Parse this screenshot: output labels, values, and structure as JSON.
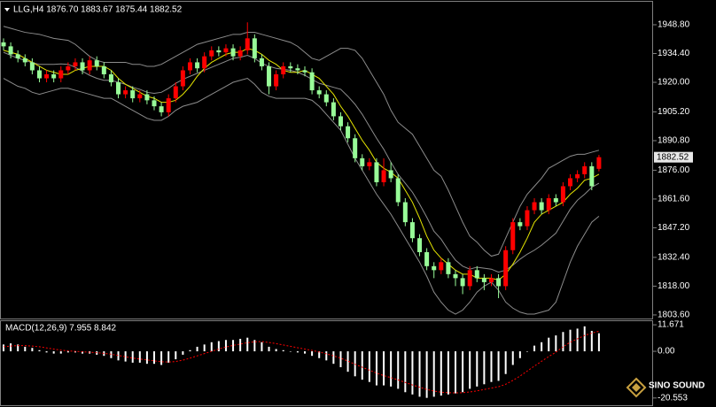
{
  "chart_data": [
    {
      "type": "candlestick",
      "title": "LLG,H4  1876.70 1883.67 1875.44 1882.52",
      "open": [
        1940,
        1938,
        1934,
        1932,
        1930,
        1926,
        1922,
        1924,
        1922,
        1926,
        1928,
        1930,
        1926,
        1931,
        1928,
        1924,
        1920,
        1914,
        1916,
        1912,
        1914,
        1911,
        1908,
        1905,
        1912,
        1918,
        1926,
        1930,
        1927,
        1933,
        1936,
        1935,
        1937,
        1933,
        1936,
        1942,
        1932,
        1928,
        1918,
        1924,
        1928,
        1927,
        1926,
        1925,
        1916,
        1914,
        1910,
        1903,
        1898,
        1892,
        1882,
        1878,
        1880,
        1870,
        1876,
        1872,
        1860,
        1850,
        1842,
        1835,
        1828,
        1826,
        1830,
        1824,
        1822,
        1818,
        1826,
        1822,
        1820,
        1822,
        1818,
        1836,
        1850,
        1848,
        1856,
        1860,
        1856,
        1862,
        1860,
        1868,
        1872,
        1874,
        1878,
        1876.7
      ],
      "high": [
        1942,
        1940,
        1936,
        1934,
        1932,
        1928,
        1926,
        1926,
        1928,
        1930,
        1932,
        1932,
        1933,
        1933,
        1930,
        1926,
        1922,
        1918,
        1918,
        1916,
        1916,
        1913,
        1910,
        1914,
        1920,
        1928,
        1932,
        1932,
        1935,
        1938,
        1938,
        1939,
        1939,
        1938,
        1950,
        1944,
        1934,
        1930,
        1926,
        1930,
        1930,
        1929,
        1928,
        1927,
        1918,
        1916,
        1912,
        1905,
        1900,
        1894,
        1884,
        1882,
        1882,
        1882,
        1880,
        1874,
        1862,
        1852,
        1844,
        1837,
        1830,
        1832,
        1832,
        1826,
        1824,
        1828,
        1828,
        1824,
        1824,
        1824,
        1838,
        1852,
        1852,
        1858,
        1862,
        1862,
        1864,
        1864,
        1870,
        1874,
        1876,
        1880,
        1880,
        1883.67
      ],
      "low": [
        1936,
        1932,
        1930,
        1928,
        1924,
        1920,
        1920,
        1920,
        1920,
        1924,
        1926,
        1924,
        1924,
        1926,
        1922,
        1918,
        1912,
        1912,
        1910,
        1910,
        1909,
        1906,
        1903,
        1903,
        1910,
        1916,
        1924,
        1925,
        1925,
        1931,
        1933,
        1933,
        1931,
        1931,
        1934,
        1930,
        1926,
        1914,
        1916,
        1922,
        1925,
        1924,
        1923,
        1914,
        1912,
        1908,
        1901,
        1896,
        1890,
        1880,
        1876,
        1876,
        1868,
        1868,
        1870,
        1858,
        1848,
        1840,
        1833,
        1826,
        1822,
        1824,
        1822,
        1818,
        1814,
        1816,
        1820,
        1816,
        1818,
        1812,
        1816,
        1834,
        1846,
        1846,
        1854,
        1854,
        1854,
        1858,
        1858,
        1866,
        1870,
        1872,
        1866,
        1875.44
      ],
      "close": [
        1938,
        1934,
        1932,
        1930,
        1926,
        1922,
        1924,
        1922,
        1926,
        1928,
        1930,
        1926,
        1931,
        1928,
        1924,
        1920,
        1914,
        1916,
        1912,
        1914,
        1911,
        1908,
        1905,
        1912,
        1918,
        1926,
        1930,
        1927,
        1933,
        1936,
        1935,
        1937,
        1933,
        1936,
        1942,
        1932,
        1928,
        1918,
        1924,
        1928,
        1927,
        1926,
        1925,
        1916,
        1914,
        1910,
        1903,
        1898,
        1892,
        1882,
        1878,
        1880,
        1870,
        1876,
        1872,
        1860,
        1850,
        1842,
        1835,
        1828,
        1826,
        1830,
        1824,
        1822,
        1818,
        1826,
        1822,
        1820,
        1822,
        1818,
        1836,
        1850,
        1848,
        1856,
        1860,
        1856,
        1862,
        1860,
        1868,
        1872,
        1874,
        1878,
        1868,
        1882.52
      ],
      "up_color": "#ff0000",
      "down_color": "#98fb98",
      "overlays": [
        {
          "color": "#8c8c8c",
          "values": [
            1948,
            1947,
            1946,
            1945,
            1944.5,
            1944,
            1943,
            1942,
            1941.5,
            1941,
            1939,
            1936,
            1933,
            1931,
            1930,
            1930,
            1930,
            1930,
            1929,
            1929,
            1928,
            1928,
            1929,
            1931,
            1933,
            1935,
            1937,
            1939,
            1940,
            1941,
            1942,
            1943,
            1944,
            1944,
            1945,
            1945,
            1944,
            1943,
            1942,
            1941,
            1940,
            1938,
            1935,
            1932,
            1931,
            1933,
            1935,
            1937,
            1937,
            1936,
            1932,
            1926,
            1920,
            1914,
            1906,
            1900,
            1897,
            1894,
            1888,
            1882,
            1876,
            1873,
            1866,
            1858,
            1850,
            1843,
            1840,
            1836,
            1833,
            1834,
            1842,
            1850,
            1858,
            1864,
            1868,
            1872,
            1877,
            1879,
            1881,
            1883,
            1884,
            1884,
            1885,
            1886
          ]
        },
        {
          "color": "#8c8c8c",
          "values": [
            1935,
            1933.5,
            1932,
            1931,
            1929.8,
            1929,
            1929,
            1929,
            1929.2,
            1929,
            1927.5,
            1925.5,
            1923.5,
            1922,
            1921,
            1921,
            1920,
            1919,
            1917.5,
            1916.5,
            1915,
            1914.5,
            1915,
            1917,
            1919.5,
            1921.5,
            1923,
            1924.5,
            1926,
            1927.5,
            1929,
            1930.5,
            1932,
            1932.5,
            1933.5,
            1932,
            1929.5,
            1928,
            1927,
            1926.5,
            1926,
            1925,
            1923.5,
            1921.5,
            1919.5,
            1918.5,
            1917.5,
            1916.5,
            1913,
            1909,
            1904,
            1898,
            1892,
            1886.5,
            1880,
            1874,
            1869.5,
            1865,
            1859,
            1852.5,
            1845.5,
            1841.5,
            1836,
            1831,
            1828,
            1826.5,
            1827.5,
            1827,
            1826.5,
            1825,
            1826,
            1828.5,
            1831.5,
            1834,
            1836,
            1838.5,
            1841.5,
            1844.5,
            1850.5,
            1856.5,
            1861,
            1864,
            1867.5,
            1869.5
          ]
        },
        {
          "color": "#8c8c8c",
          "values": [
            1922,
            1920,
            1918,
            1917,
            1915,
            1914,
            1915,
            1916,
            1917,
            1917,
            1916,
            1915,
            1914,
            1913,
            1912,
            1912,
            1910,
            1908,
            1906,
            1904,
            1902,
            1901,
            1901,
            1903,
            1906,
            1908,
            1909,
            1910,
            1912,
            1914,
            1916,
            1918,
            1920,
            1921,
            1922,
            1919,
            1915,
            1913,
            1912,
            1912,
            1912,
            1912,
            1912,
            1911,
            1908,
            1904,
            1900,
            1896,
            1889,
            1882,
            1876,
            1870,
            1864,
            1859,
            1854,
            1848,
            1842,
            1836,
            1830,
            1823,
            1815,
            1810,
            1806,
            1804,
            1806,
            1810,
            1815,
            1818,
            1820,
            1816,
            1810,
            1807,
            1805,
            1804,
            1804,
            1805,
            1806,
            1810,
            1820,
            1830,
            1838,
            1844,
            1850,
            1853
          ]
        },
        {
          "color": "#e6e600",
          "values": [
            1936,
            1935,
            1934,
            1932,
            1930,
            1928,
            1926,
            1925,
            1924,
            1924,
            1926,
            1927,
            1928,
            1928,
            1928,
            1926,
            1922,
            1919,
            1917,
            1915,
            1913,
            1912,
            1910,
            1910,
            1911,
            1914,
            1918,
            1923,
            1927,
            1930,
            1932,
            1934,
            1935,
            1935,
            1937,
            1936,
            1934,
            1931,
            1929,
            1926,
            1925,
            1925,
            1926,
            1924,
            1922,
            1918,
            1914,
            1908,
            1903,
            1897,
            1891,
            1886,
            1880,
            1877,
            1875,
            1872,
            1866,
            1860,
            1852,
            1843,
            1836,
            1832,
            1829,
            1826,
            1824,
            1824,
            1822,
            1822,
            1822,
            1821,
            1824,
            1829,
            1835,
            1842,
            1850,
            1854,
            1856,
            1858,
            1860,
            1864,
            1867,
            1871,
            1872,
            1874
          ]
        }
      ],
      "ylim": [
        1801.8,
        1960.3
      ],
      "yticks": [
        {
          "value": 1948.8,
          "label": "1948.80"
        },
        {
          "value": 1934.4,
          "label": "1934.40"
        },
        {
          "value": 1920,
          "label": "1920.00"
        },
        {
          "value": 1905.2,
          "label": "1905.20"
        },
        {
          "value": 1890.8,
          "label": "1890.80"
        },
        {
          "value": 1876,
          "label": "1876.00"
        },
        {
          "value": 1861.6,
          "label": "1861.60"
        },
        {
          "value": 1847.2,
          "label": "1847.20"
        },
        {
          "value": 1832.4,
          "label": "1832.40"
        },
        {
          "value": 1818,
          "label": "1818.00"
        },
        {
          "value": 1803.6,
          "label": "1803.60"
        }
      ],
      "grid": false
    },
    {
      "type": "macd",
      "title": "MACD(12,26,9) 7.955 8.842",
      "values": [
        3,
        3.5,
        3,
        2,
        1.5,
        0.5,
        -0.5,
        -1,
        -1,
        -0.5,
        -0.5,
        -1,
        -1,
        -1.5,
        -2,
        -3,
        -4,
        -4.5,
        -5,
        -5,
        -5.5,
        -5.5,
        -6,
        -5,
        -3.5,
        -1.5,
        0.5,
        2,
        3,
        4,
        4.5,
        5,
        5,
        5.5,
        6,
        5,
        4,
        2,
        1,
        0.5,
        0,
        -0.5,
        -1,
        -2,
        -3,
        -4,
        -5.5,
        -7,
        -9,
        -11,
        -12.5,
        -13.5,
        -15,
        -15,
        -15.5,
        -16.5,
        -18,
        -19,
        -20,
        -20.5,
        -20,
        -19.5,
        -19,
        -18.5,
        -18,
        -16.5,
        -15.5,
        -14.5,
        -13.5,
        -13,
        -10,
        -6,
        -3,
        0,
        2.5,
        4,
        6,
        7,
        8.5,
        9.5,
        10,
        11,
        9,
        7.955
      ],
      "signal": [
        2,
        2.3,
        2.5,
        2.5,
        2.3,
        2,
        1.5,
        1,
        0.5,
        0.2,
        0,
        -0.2,
        -0.4,
        -0.6,
        -0.9,
        -1.3,
        -1.8,
        -2.4,
        -3,
        -3.4,
        -3.8,
        -4.2,
        -4.6,
        -4.7,
        -4.5,
        -3.9,
        -3,
        -2,
        -1,
        0,
        1,
        1.9,
        2.6,
        3.2,
        3.8,
        4.2,
        4.3,
        3.9,
        3.4,
        2.8,
        2.2,
        1.6,
        1,
        0.4,
        -0.3,
        -1.1,
        -2,
        -3,
        -4.3,
        -5.7,
        -7,
        -8.3,
        -9.6,
        -10.7,
        -11.6,
        -12.6,
        -13.7,
        -14.8,
        -15.8,
        -16.8,
        -17.5,
        -18,
        -18.2,
        -18.3,
        -18.2,
        -17.9,
        -17.4,
        -16.8,
        -16.2,
        -15.6,
        -14.5,
        -12.8,
        -10.9,
        -8.7,
        -6.5,
        -4.4,
        -2.3,
        -0.4,
        2,
        4,
        5.5,
        7,
        8,
        8.842
      ],
      "bar_color": "#ffffff",
      "signal_color": "#ff0000",
      "ylim": [
        -23.74,
        13.66
      ],
      "yticks": [
        11.671,
        {
          "value": 0,
          "label": "0.00"
        },
        -20.553
      ]
    }
  ],
  "logo": {
    "text": "SINO SOUND"
  }
}
